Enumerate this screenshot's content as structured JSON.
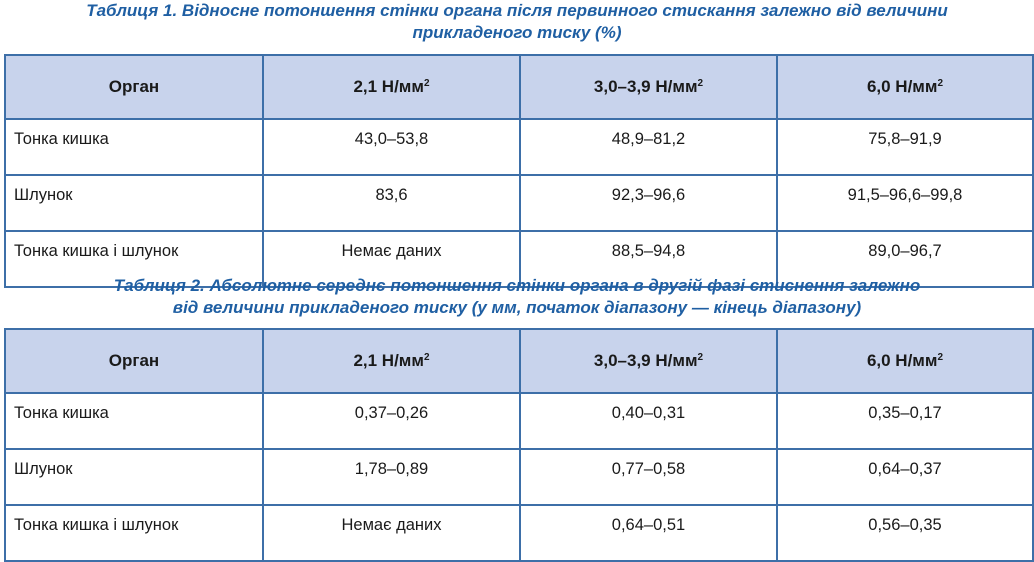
{
  "table1": {
    "caption_line1": "Таблиця 1. Відносне потоншення стінки органа після первинного стискання залежно від величини",
    "caption_line2": "прикладеного тиску (%)",
    "headers": [
      "Орган",
      "2,1 Н/мм",
      "3,0–3,9 Н/мм",
      "6,0 Н/мм"
    ],
    "header_superscript": "2",
    "rows": [
      [
        "Тонка кишка",
        "43,0–53,8",
        "48,9–81,2",
        "75,8–91,9"
      ],
      [
        "Шлунок",
        "83,6",
        "92,3–96,6",
        "91,5–96,6–99,8"
      ],
      [
        "Тонка кишка і шлунок",
        "Немає даних",
        "88,5–94,8",
        "89,0–96,7"
      ]
    ]
  },
  "table2": {
    "caption_line1": "Таблиця 2. Абсолютне середнє потоншення стінки органа в другій фазі стиснення залежно",
    "caption_line2": "від величини прикладеного тиску (у мм, початок діапазону — кінець діапазону)",
    "headers": [
      "Орган",
      "2,1 Н/мм",
      "3,0–3,9 Н/мм",
      "6,0 Н/мм"
    ],
    "header_superscript": "2",
    "rows": [
      [
        "Тонка кишка",
        "0,37–0,26",
        "0,40–0,31",
        "0,35–0,17"
      ],
      [
        "Шлунок",
        "1,78–0,89",
        "0,77–0,58",
        "0,64–0,37"
      ],
      [
        "Тонка кишка і шлунок",
        "Немає даних",
        "0,64–0,51",
        "0,56–0,35"
      ]
    ]
  },
  "colors": {
    "caption": "#1f5fa3",
    "border": "#3d6fa8",
    "header_bg": "#c8d3ec"
  }
}
